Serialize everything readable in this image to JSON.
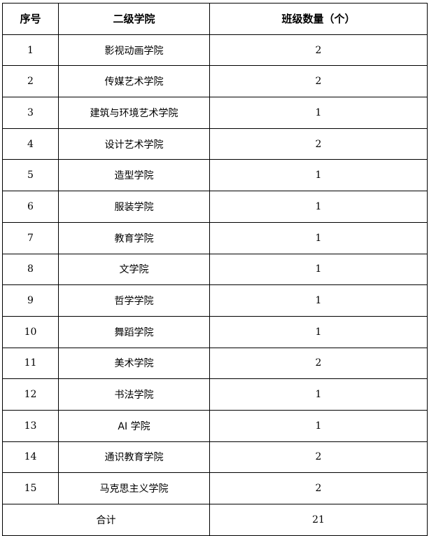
{
  "table": {
    "headers": [
      "序号",
      "二级学院",
      "班级数量（个）"
    ],
    "rows": [
      {
        "no": "1",
        "college": "影视动画学院",
        "count": "2"
      },
      {
        "no": "2",
        "college": "传媒艺术学院",
        "count": "2"
      },
      {
        "no": "3",
        "college": "建筑与环境艺术学院",
        "count": "1"
      },
      {
        "no": "4",
        "college": "设计艺术学院",
        "count": "2"
      },
      {
        "no": "5",
        "college": "造型学院",
        "count": "1"
      },
      {
        "no": "6",
        "college": "服装学院",
        "count": "1"
      },
      {
        "no": "7",
        "college": "教育学院",
        "count": "1"
      },
      {
        "no": "8",
        "college": "文学院",
        "count": "1"
      },
      {
        "no": "9",
        "college": "哲学学院",
        "count": "1"
      },
      {
        "no": "10",
        "college": "舞蹈学院",
        "count": "1"
      },
      {
        "no": "11",
        "college": "美术学院",
        "count": "2"
      },
      {
        "no": "12",
        "college": "书法学院",
        "count": "1"
      },
      {
        "no": "13",
        "college": "AI 学院",
        "count": "1"
      },
      {
        "no": "14",
        "college": "通识教育学院",
        "count": "2"
      },
      {
        "no": "15",
        "college": "马克思主义学院",
        "count": "2"
      }
    ],
    "total_label": "合计",
    "total_value": "21"
  }
}
